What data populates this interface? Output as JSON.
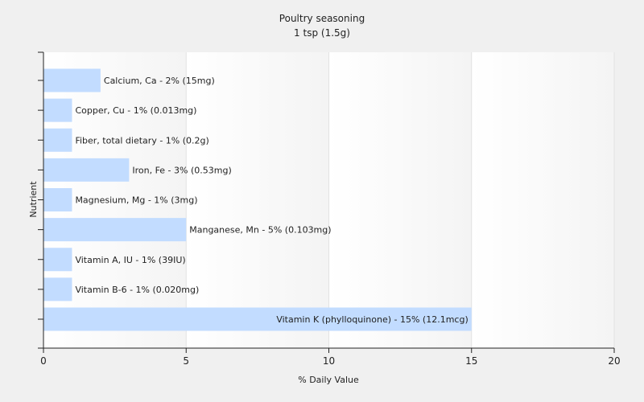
{
  "chart_data": {
    "type": "bar",
    "orientation": "horizontal",
    "title": "Poultry seasoning",
    "subtitle": "1 tsp (1.5g)",
    "xlabel": "% Daily Value",
    "ylabel": "Nutrient",
    "xlim": [
      0,
      20
    ],
    "xticks": [
      "0",
      "5",
      "10",
      "15",
      "20"
    ],
    "grid": true,
    "bar_color": "#c2dcff",
    "categories": [
      "Calcium, Ca",
      "Copper, Cu",
      "Fiber, total dietary",
      "Iron, Fe",
      "Magnesium, Mg",
      "Manganese, Mn",
      "Vitamin A, IU",
      "Vitamin B-6",
      "Vitamin K (phylloquinone)"
    ],
    "values": [
      2,
      1,
      1,
      3,
      1,
      5,
      1,
      1,
      15
    ],
    "data_labels": [
      "Calcium, Ca - 2% (15mg)",
      "Copper, Cu - 1% (0.013mg)",
      "Fiber, total dietary - 1% (0.2g)",
      "Iron, Fe - 3% (0.53mg)",
      "Magnesium, Mg - 1% (3mg)",
      "Manganese, Mn - 5% (0.103mg)",
      "Vitamin A, IU - 1% (39IU)",
      "Vitamin B-6 - 1% (0.020mg)",
      "Vitamin K (phylloquinone) - 15% (12.1mcg)"
    ]
  }
}
